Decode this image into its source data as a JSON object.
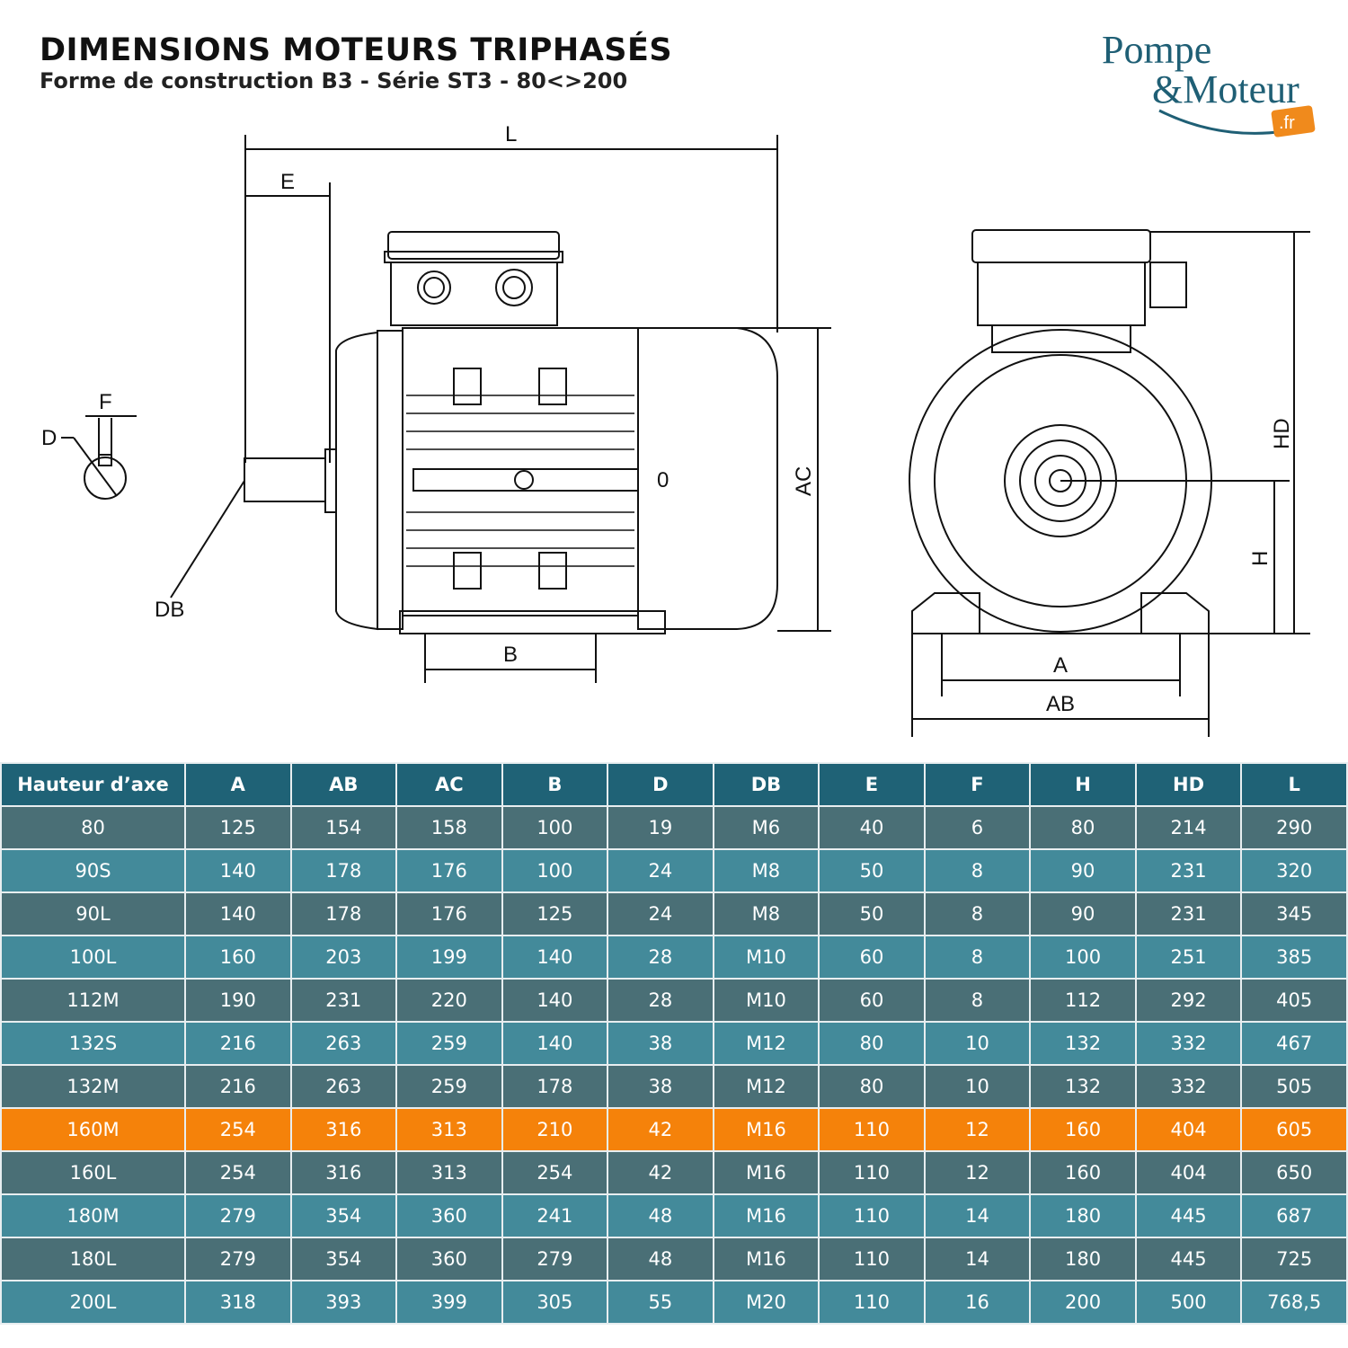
{
  "header": {
    "title": "DIMENSIONS MOTEURS TRIPHASÉS",
    "subtitle": "Forme de construction B3 - Série ST3 - 80<>200"
  },
  "logo": {
    "line1": "Pompe",
    "line2": "&Moteur",
    "badge": ".fr",
    "colors": {
      "text": "#1f5f75",
      "badge": "#f08a1c"
    }
  },
  "diagram": {
    "labels": {
      "L": "L",
      "E": "E",
      "F": "F",
      "D": "D",
      "DB": "DB",
      "AC": "AC",
      "B": "B",
      "zero": "0",
      "HD": "HD",
      "H": "H",
      "A": "A",
      "AB": "AB"
    }
  },
  "colors": {
    "header": "#1f6276",
    "row_dark": "#4a6f76",
    "row_light": "#438a9a",
    "highlight": "#f5820a"
  },
  "table": {
    "columns": [
      "Hauteur d’axe",
      "A",
      "AB",
      "AC",
      "B",
      "D",
      "DB",
      "E",
      "F",
      "H",
      "HD",
      "L"
    ],
    "highlighted_row": "160M",
    "rows": [
      [
        "80",
        "125",
        "154",
        "158",
        "100",
        "19",
        "M6",
        "40",
        "6",
        "80",
        "214",
        "290"
      ],
      [
        "90S",
        "140",
        "178",
        "176",
        "100",
        "24",
        "M8",
        "50",
        "8",
        "90",
        "231",
        "320"
      ],
      [
        "90L",
        "140",
        "178",
        "176",
        "125",
        "24",
        "M8",
        "50",
        "8",
        "90",
        "231",
        "345"
      ],
      [
        "100L",
        "160",
        "203",
        "199",
        "140",
        "28",
        "M10",
        "60",
        "8",
        "100",
        "251",
        "385"
      ],
      [
        "112M",
        "190",
        "231",
        "220",
        "140",
        "28",
        "M10",
        "60",
        "8",
        "112",
        "292",
        "405"
      ],
      [
        "132S",
        "216",
        "263",
        "259",
        "140",
        "38",
        "M12",
        "80",
        "10",
        "132",
        "332",
        "467"
      ],
      [
        "132M",
        "216",
        "263",
        "259",
        "178",
        "38",
        "M12",
        "80",
        "10",
        "132",
        "332",
        "505"
      ],
      [
        "160M",
        "254",
        "316",
        "313",
        "210",
        "42",
        "M16",
        "110",
        "12",
        "160",
        "404",
        "605"
      ],
      [
        "160L",
        "254",
        "316",
        "313",
        "254",
        "42",
        "M16",
        "110",
        "12",
        "160",
        "404",
        "650"
      ],
      [
        "180M",
        "279",
        "354",
        "360",
        "241",
        "48",
        "M16",
        "110",
        "14",
        "180",
        "445",
        "687"
      ],
      [
        "180L",
        "279",
        "354",
        "360",
        "279",
        "48",
        "M16",
        "110",
        "14",
        "180",
        "445",
        "725"
      ],
      [
        "200L",
        "318",
        "393",
        "399",
        "305",
        "55",
        "M20",
        "110",
        "16",
        "200",
        "500",
        "768,5"
      ]
    ]
  }
}
